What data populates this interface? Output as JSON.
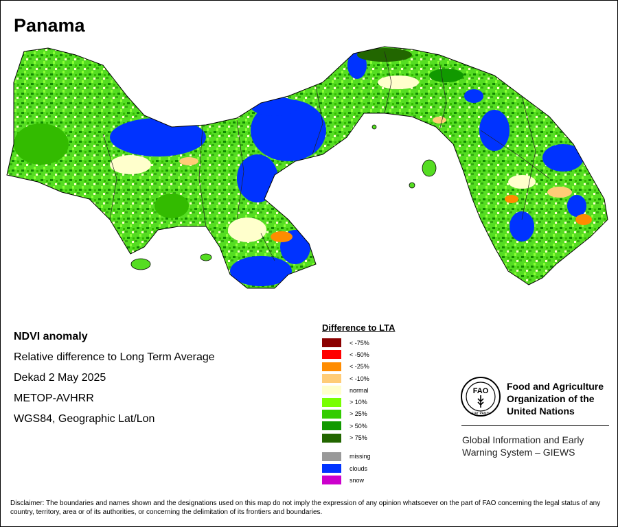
{
  "title": "Panama",
  "info": {
    "product": "NDVI anomaly",
    "description": "Relative difference to Long Term Average",
    "period": "Dekad 2 May 2025",
    "sensor": "METOP-AVHRR",
    "projection": "WGS84, Geographic Lat/Lon"
  },
  "legend": {
    "title": "Difference to LTA",
    "classes": [
      {
        "label": "< -75%",
        "color": "#8b0000"
      },
      {
        "label": "< -50%",
        "color": "#ff0000"
      },
      {
        "label": "< -25%",
        "color": "#ff8c00"
      },
      {
        "label": "< -10%",
        "color": "#ffcc77"
      },
      {
        "label": "normal",
        "color": "#ffffcc"
      },
      {
        "label": "> 10%",
        "color": "#77ff00"
      },
      {
        "label": "> 25%",
        "color": "#33cc00"
      },
      {
        "label": "> 50%",
        "color": "#119900"
      },
      {
        "label": "> 75%",
        "color": "#226600"
      }
    ],
    "other": [
      {
        "label": "missing",
        "color": "#999999"
      },
      {
        "label": "clouds",
        "color": "#0033ff"
      },
      {
        "label": "snow",
        "color": "#cc00cc"
      }
    ]
  },
  "fao": {
    "name": "Food and Agriculture Organization of the United Nations",
    "system": "Global Information and Early Warning System – GIEWS",
    "logo_text": "FAO",
    "logo_motto": "FIAT PANIS"
  },
  "disclaimer": "Disclaimer: The boundaries and names shown and the designations used on this map do not imply the expression of any opinion whatsoever on the part of FAO concerning the legal status of any country, territory, area or of its authorities, or concerning the delimitation of its frontiers and boundaries."
}
